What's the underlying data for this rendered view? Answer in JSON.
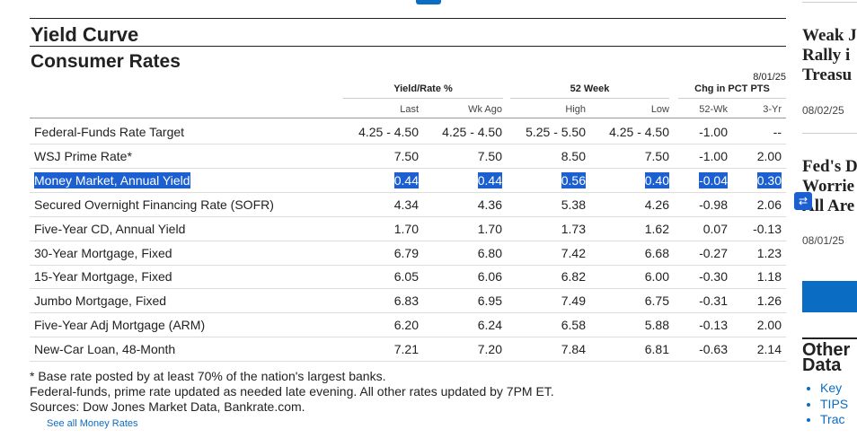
{
  "section_title": "Yield Curve",
  "title": "Consumer Rates",
  "date": "8/01/25",
  "table": {
    "groups": [
      "Yield/Rate %",
      "52 Week",
      "Chg in PCT PTS"
    ],
    "columns": [
      "Last",
      "Wk Ago",
      "High",
      "Low",
      "52-Wk",
      "3-Yr"
    ],
    "rows": [
      [
        "Federal-Funds Rate Target",
        "4.25 - 4.50",
        "4.25 - 4.50",
        "5.25 - 5.50",
        "4.25 - 4.50",
        "-1.00",
        "--"
      ],
      [
        "WSJ Prime Rate*",
        "7.50",
        "7.50",
        "8.50",
        "7.50",
        "-1.00",
        "2.00"
      ],
      [
        "Money Market, Annual Yield",
        "0.44",
        "0.44",
        "0.56",
        "0.40",
        "-0.04",
        "0.30"
      ],
      [
        "Secured Overnight Financing Rate (SOFR)",
        "4.34",
        "4.36",
        "5.38",
        "4.26",
        "-0.98",
        "2.06"
      ],
      [
        "Five-Year CD, Annual Yield",
        "1.70",
        "1.70",
        "1.73",
        "1.62",
        "0.07",
        "-0.13"
      ],
      [
        "30-Year Mortgage, Fixed",
        "6.79",
        "6.80",
        "7.42",
        "6.68",
        "-0.27",
        "1.23"
      ],
      [
        "15-Year Mortgage, Fixed",
        "6.05",
        "6.06",
        "6.82",
        "6.00",
        "-0.30",
        "1.18"
      ],
      [
        "Jumbo Mortgage, Fixed",
        "6.83",
        "6.95",
        "7.49",
        "6.75",
        "-0.31",
        "1.26"
      ],
      [
        "Five-Year Adj Mortgage (ARM)",
        "6.20",
        "6.24",
        "6.58",
        "5.88",
        "-0.13",
        "2.00"
      ],
      [
        "New-Car Loan, 48-Month",
        "7.21",
        "7.20",
        "7.84",
        "6.81",
        "-0.63",
        "2.14"
      ]
    ]
  },
  "footnotes": [
    "* Base rate posted by at least 70% of the nation's largest banks.",
    "Federal-funds, prime rate updated as needed late evening. All other rates updated by 7PM ET.",
    "Sources: Dow Jones Market Data, Bankrate.com."
  ],
  "link": "See all Money Rates",
  "sidebar": {
    "articles": [
      {
        "headline": [
          "Weak J",
          "Rally i",
          "Treasu"
        ],
        "date": "08/02/25"
      },
      {
        "headline": [
          "Fed's D",
          "Worrie",
          "All Are"
        ],
        "date": "08/01/25"
      }
    ],
    "other_title": [
      "Other",
      "Data"
    ],
    "links": [
      "Key",
      "TIPS",
      "Trac"
    ]
  }
}
